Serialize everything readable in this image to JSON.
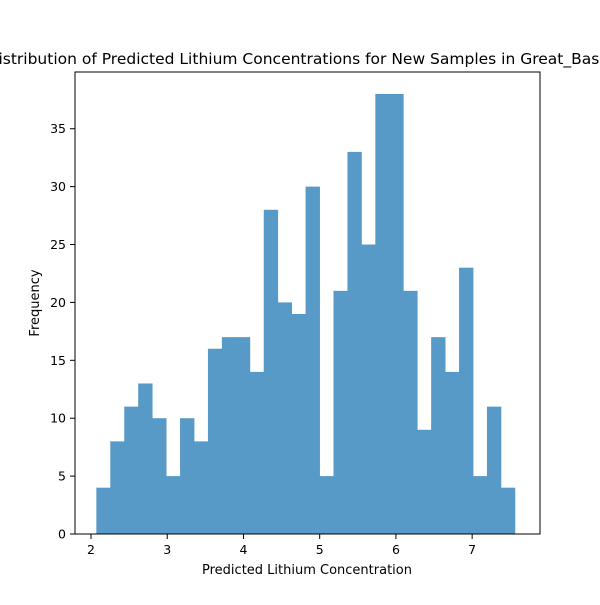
{
  "chart_data": {
    "type": "bar",
    "title": "Distribution of Predicted Lithium Concentrations for New Samples in Great_Basin",
    "xlabel": "Predicted Lithium Concentration",
    "ylabel": "Frequency",
    "xlim": [
      1.79,
      7.89
    ],
    "ylim": [
      0,
      39.9
    ],
    "xticks": [
      2,
      3,
      4,
      5,
      6,
      7
    ],
    "yticks": [
      0,
      5,
      10,
      15,
      20,
      25,
      30,
      35
    ],
    "bin_start": 2.07,
    "bin_width": 0.183,
    "values": [
      4,
      8,
      11,
      13,
      10,
      5,
      10,
      8,
      16,
      17,
      17,
      14,
      28,
      20,
      19,
      30,
      5,
      21,
      33,
      25,
      38,
      38,
      21,
      9,
      17,
      14,
      23,
      5,
      11,
      4
    ],
    "bar_color": "#5799c7",
    "grid": false,
    "legend": false
  }
}
